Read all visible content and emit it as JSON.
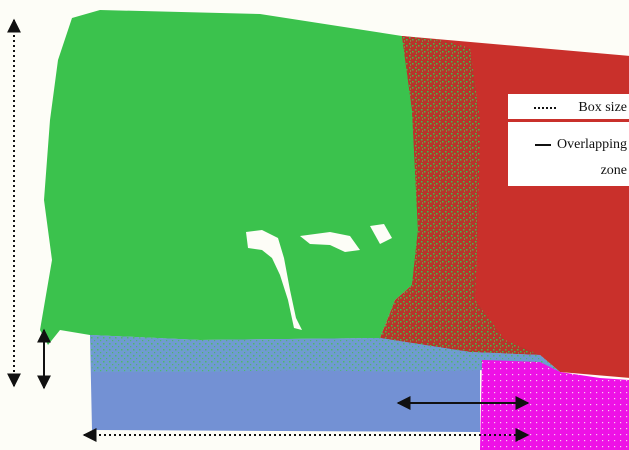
{
  "colors": {
    "background": "#fdfdf7",
    "green_region": "#3bc24d",
    "red_region": "#c9302b",
    "blue_region": "#7391d4",
    "magenta_region": "#ee11e6",
    "arrow": "#111111"
  },
  "legend": {
    "box_size_label": "Box size",
    "overlapping_label_line1": "Overlapping",
    "overlapping_label_line2": "zone",
    "box_size_line_style": "dotted",
    "overlapping_line_style": "solid"
  }
}
